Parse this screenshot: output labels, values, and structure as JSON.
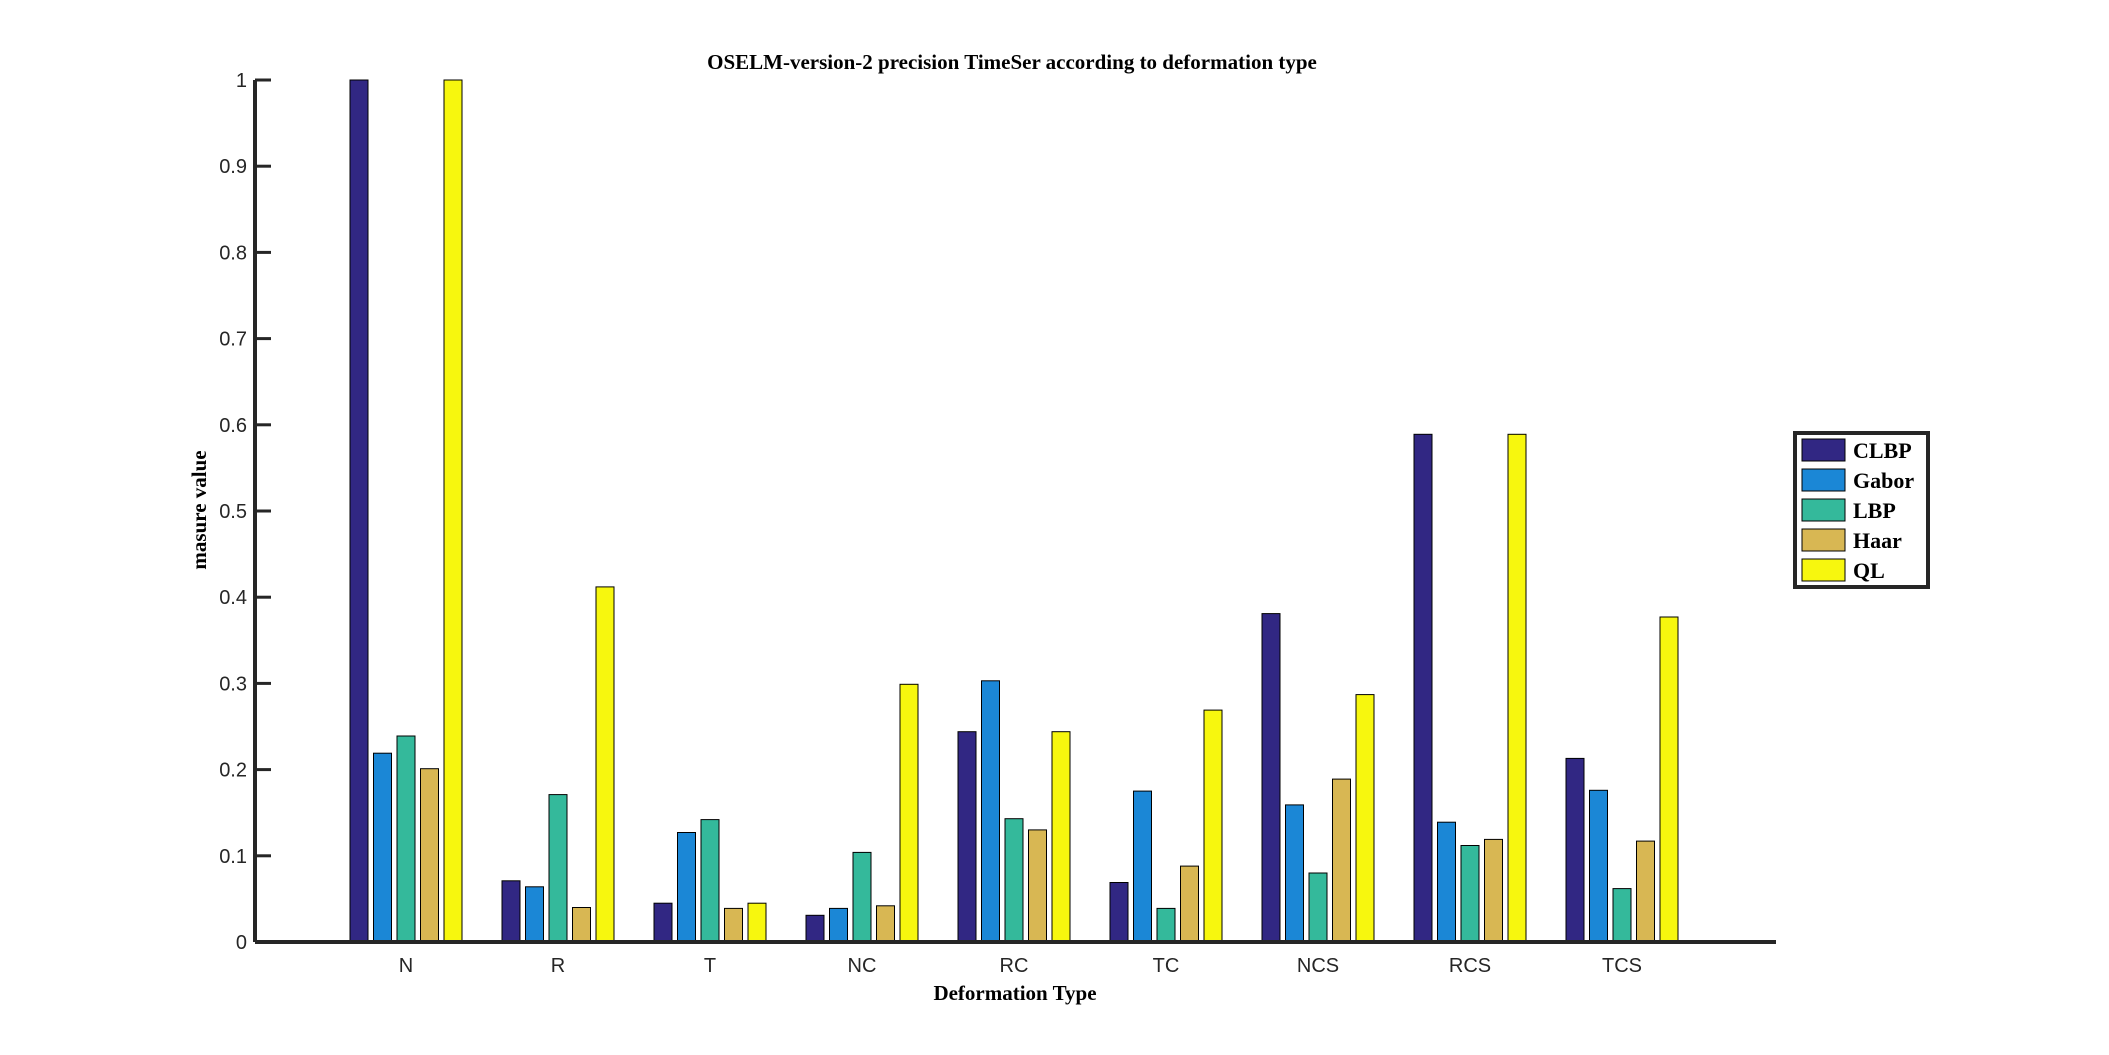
{
  "chart_data": {
    "type": "bar",
    "title": "OSELM-version-2 precision TimeSer according to deformation type",
    "xlabel": "Deformation Type",
    "ylabel": "masure value",
    "ylim": [
      0,
      1
    ],
    "yticks": [
      "0",
      "0.1",
      "0.2",
      "0.3",
      "0.4",
      "0.5",
      "0.6",
      "0.7",
      "0.8",
      "0.9",
      "1"
    ],
    "categories": [
      "N",
      "R",
      "T",
      "NC",
      "RC",
      "TC",
      "NCS",
      "RCS",
      "TCS"
    ],
    "series": [
      {
        "name": "CLBP",
        "color": "#312783",
        "values": [
          1.0,
          0.071,
          0.045,
          0.031,
          0.244,
          0.069,
          0.381,
          0.589,
          0.213
        ]
      },
      {
        "name": "Gabor",
        "color": "#1b87d6",
        "values": [
          0.219,
          0.064,
          0.127,
          0.039,
          0.303,
          0.175,
          0.159,
          0.139,
          0.176
        ]
      },
      {
        "name": "LBP",
        "color": "#34b99b",
        "values": [
          0.239,
          0.171,
          0.142,
          0.104,
          0.143,
          0.039,
          0.08,
          0.112,
          0.062
        ]
      },
      {
        "name": "Haar",
        "color": "#d8b753",
        "values": [
          0.201,
          0.04,
          0.039,
          0.042,
          0.13,
          0.088,
          0.189,
          0.119,
          0.117
        ]
      },
      {
        "name": "QL",
        "color": "#f7f70e",
        "values": [
          1.0,
          0.412,
          0.045,
          0.299,
          0.244,
          0.269,
          0.287,
          0.589,
          0.377
        ]
      }
    ],
    "legend_position": "right",
    "grid": false
  }
}
